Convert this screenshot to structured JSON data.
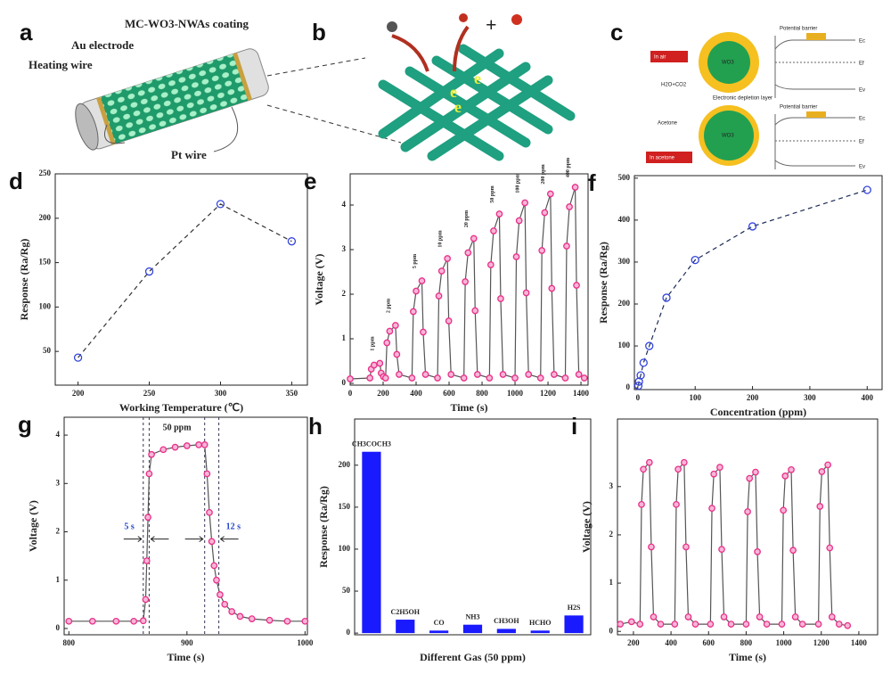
{
  "chart_data": [
    {
      "type": "line",
      "label": "d",
      "x": [
        200,
        250,
        300,
        350
      ],
      "values": [
        43,
        140,
        216,
        174
      ],
      "xlim": [
        184,
        361
      ],
      "xticks": [
        200,
        250,
        300,
        350
      ],
      "ylim": [
        12,
        250
      ],
      "yticks": [
        50,
        100,
        150,
        200,
        250
      ],
      "xlabel": "Working Temperature (℃)",
      "ylabel": "Response (Ra/Rg)",
      "color": "#3344dd",
      "line_color": "#333333",
      "line_style": "dashed"
    },
    {
      "type": "line",
      "label": "e",
      "x": [
        0,
        120,
        128,
        145,
        180,
        188,
        202,
        215,
        223,
        240,
        275,
        283,
        297,
        375,
        383,
        400,
        435,
        443,
        457,
        530,
        538,
        555,
        590,
        598,
        612,
        690,
        698,
        715,
        750,
        758,
        772,
        845,
        853,
        870,
        905,
        913,
        927,
        1000,
        1008,
        1025,
        1060,
        1068,
        1082,
        1155,
        1163,
        1180,
        1215,
        1223,
        1237,
        1305,
        1313,
        1330,
        1365,
        1373,
        1387,
        1420
      ],
      "values": [
        0.1,
        0.12,
        0.32,
        0.41,
        0.45,
        0.23,
        0.15,
        0.12,
        0.91,
        1.17,
        1.3,
        0.65,
        0.2,
        0.12,
        1.61,
        2.07,
        2.3,
        1.15,
        0.2,
        0.12,
        1.96,
        2.52,
        2.8,
        1.4,
        0.2,
        0.12,
        2.28,
        2.93,
        3.25,
        1.63,
        0.2,
        0.12,
        2.66,
        3.42,
        3.8,
        1.9,
        0.2,
        0.12,
        2.84,
        3.65,
        4.05,
        2.03,
        0.2,
        0.12,
        2.98,
        3.83,
        4.25,
        2.13,
        0.2,
        0.12,
        3.08,
        3.96,
        4.4,
        2.2,
        0.2,
        0.12
      ],
      "xlim": [
        0,
        1443
      ],
      "xticks": [
        0,
        200,
        400,
        600,
        800,
        1000,
        1200,
        1400
      ],
      "ylim": [
        -0.04,
        4.7
      ],
      "yticks": [
        0,
        1,
        2,
        3,
        4
      ],
      "xlabel": "Time (s)",
      "ylabel": "Voltage (V)",
      "color": "#e8308a",
      "line_color": "#555555",
      "line_style": "solid",
      "peak_labels": [
        "1 ppm",
        "2 ppm",
        "5 ppm",
        "10 ppm",
        "20 ppm",
        "50 ppm",
        "100 ppm",
        "200 ppm",
        "400 ppm"
      ]
    },
    {
      "type": "line",
      "label": "f",
      "x": [
        1,
        2,
        5,
        10,
        20,
        50,
        100,
        200,
        400
      ],
      "values": [
        5,
        15,
        30,
        60,
        100,
        215,
        305,
        385,
        472
      ],
      "xlim": [
        -6,
        426
      ],
      "xticks": [
        0,
        100,
        200,
        300,
        400
      ],
      "ylim": [
        -4,
        506
      ],
      "yticks": [
        0,
        100,
        200,
        300,
        400,
        500
      ],
      "xlabel": "Concentration (ppm)",
      "ylabel": "Response (Ra/Rg)",
      "color": "#3344dd",
      "line_color": "#1a2a55",
      "line_style": "dashed"
    },
    {
      "type": "line",
      "label": "g",
      "x": [
        800,
        820,
        840,
        855,
        863,
        865,
        866,
        867,
        868,
        870,
        880,
        890,
        900,
        910,
        915,
        917,
        919,
        921,
        923,
        925,
        928,
        932,
        938,
        945,
        955,
        970,
        985,
        1000
      ],
      "values": [
        0.15,
        0.15,
        0.15,
        0.15,
        0.16,
        0.6,
        1.4,
        2.3,
        3.2,
        3.6,
        3.7,
        3.75,
        3.78,
        3.8,
        3.8,
        3.2,
        2.4,
        1.8,
        1.3,
        1.0,
        0.7,
        0.5,
        0.35,
        0.25,
        0.2,
        0.17,
        0.15,
        0.15
      ],
      "xlim": [
        796,
        1002
      ],
      "xticks": [
        800,
        900,
        1000
      ],
      "ylim": [
        -0.13,
        4.37
      ],
      "yticks": [
        0,
        1,
        2,
        3,
        4
      ],
      "xlabel": "Time (s)",
      "ylabel": "Voltage (V)",
      "color": "#e8308a",
      "line_color": "#555555",
      "line_style": "solid",
      "vlines": [
        863,
        868,
        915,
        927
      ],
      "annotations": [
        "50 ppm",
        "5 s",
        "12 s"
      ]
    },
    {
      "type": "bar",
      "label": "h",
      "categories": [
        "CH3COCH3",
        "C2H5OH",
        "CO",
        "NH3",
        "CH3OH",
        "HCHO",
        "H2S"
      ],
      "values": [
        216,
        16,
        3,
        10,
        5,
        3,
        21
      ],
      "ylim": [
        -2,
        255
      ],
      "yticks": [
        0,
        50,
        100,
        150,
        200
      ],
      "xlabel": "Different Gas (50 ppm)",
      "ylabel": "Response (Ra/Rg)",
      "color": "#1a1aff"
    },
    {
      "type": "line",
      "label": "i",
      "x": [
        130,
        190,
        235,
        243,
        253,
        285,
        295,
        307,
        345,
        420,
        428,
        438,
        470,
        480,
        492,
        530,
        610,
        618,
        628,
        660,
        670,
        682,
        720,
        800,
        808,
        818,
        850,
        860,
        872,
        910,
        990,
        998,
        1008,
        1040,
        1050,
        1062,
        1100,
        1185,
        1193,
        1203,
        1235,
        1245,
        1257,
        1295,
        1340
      ],
      "values": [
        0.15,
        0.2,
        0.15,
        2.63,
        3.36,
        3.5,
        1.75,
        0.3,
        0.15,
        0.15,
        2.63,
        3.36,
        3.5,
        1.75,
        0.3,
        0.15,
        0.15,
        2.55,
        3.26,
        3.4,
        1.7,
        0.3,
        0.15,
        0.15,
        2.48,
        3.17,
        3.3,
        1.65,
        0.3,
        0.15,
        0.15,
        2.51,
        3.22,
        3.35,
        1.68,
        0.3,
        0.15,
        0.15,
        2.59,
        3.31,
        3.45,
        1.73,
        0.3,
        0.15,
        0.12
      ],
      "xlim": [
        115,
        1500
      ],
      "xticks": [
        200,
        400,
        600,
        800,
        1000,
        1200,
        1400
      ],
      "ylim": [
        -0.07,
        4.4
      ],
      "yticks": [
        0,
        1,
        2,
        3
      ],
      "xlabel": "Time (s)",
      "ylabel": "Voltage (V)",
      "color": "#e8308a",
      "line_color": "#555555",
      "line_style": "solid"
    }
  ],
  "diagrams": {
    "a": {
      "label": "a",
      "texts": [
        "MC-WO3-NWAs coating",
        "Au electrode",
        "Heating wire",
        "Pt wire"
      ]
    },
    "b": {
      "label": "b",
      "texts": [
        "+",
        "e",
        "e",
        "e"
      ]
    },
    "c": {
      "label": "c",
      "texts": [
        "In air",
        "In acetone",
        "Potential barrier",
        "Potential barrier",
        "WO3",
        "WO3",
        "H2O+CO2",
        "Acetone",
        "Electronic depletion layer",
        "Ec",
        "Ef",
        "Ev",
        "Ec",
        "Ef",
        "Ev"
      ]
    }
  }
}
